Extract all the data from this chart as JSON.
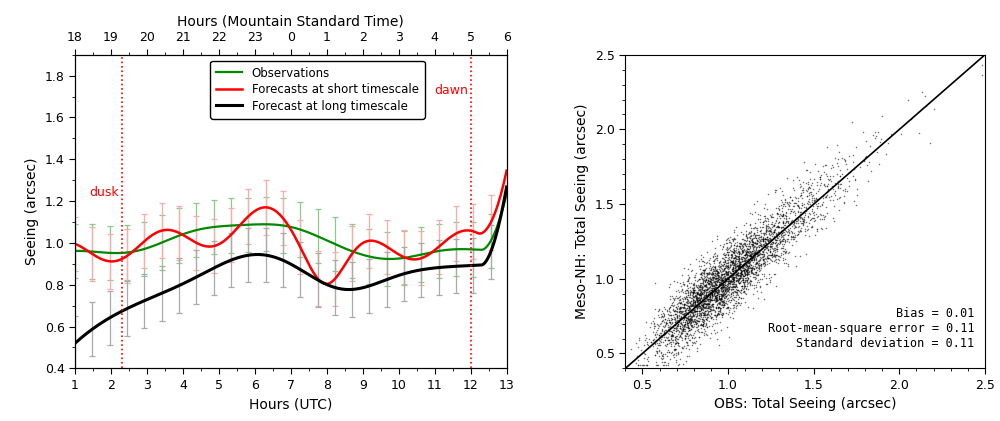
{
  "left_panel": {
    "xlabel": "Hours (UTC)",
    "ylabel": "Seeing (arcsec)",
    "top_xlabel": "Hours (Mountain Standard Time)",
    "xlim": [
      1,
      13
    ],
    "ylim": [
      0.4,
      1.9
    ],
    "xticks": [
      1,
      2,
      3,
      4,
      5,
      6,
      7,
      8,
      9,
      10,
      11,
      12,
      13
    ],
    "yticks": [
      0.4,
      0.6,
      0.8,
      1.0,
      1.2,
      1.4,
      1.6,
      1.8
    ],
    "top_xtick_positions": [
      1,
      2,
      3,
      4,
      5,
      6,
      7,
      8,
      9,
      10,
      11,
      12,
      13
    ],
    "top_xtick_labels": [
      "18",
      "19",
      "20",
      "21",
      "22",
      "23",
      "0",
      "1",
      "2",
      "3",
      "4",
      "5",
      "6"
    ],
    "dusk_x": 2.3,
    "dawn_x": 12.0,
    "legend_labels": [
      "Observations",
      "Forecasts at short timescale",
      "Forecast at long timescale"
    ],
    "obs_color": "#008800",
    "short_color": "#ff0000",
    "long_color": "#000000",
    "err_obs_color": "#88cc88",
    "err_short_color": "#ffaaaa",
    "err_long_color": "#aaaaaa",
    "vline_color": "#ff0000"
  },
  "right_panel": {
    "xlabel": "OBS: Total Seeing (arcsec)",
    "ylabel": "Meso-NH: Total Seeing (arcsec)",
    "xlim": [
      0.4,
      2.5
    ],
    "ylim": [
      0.4,
      2.5
    ],
    "xticks": [
      0.5,
      1.0,
      1.5,
      2.0,
      2.5
    ],
    "yticks": [
      0.5,
      1.0,
      1.5,
      2.0,
      2.5
    ],
    "annotation": "Bias = 0.01\nRoot-mean-square error = 0.11\nStandard deviation = 0.11",
    "dot_color": "#000000",
    "line_color": "#000000"
  }
}
